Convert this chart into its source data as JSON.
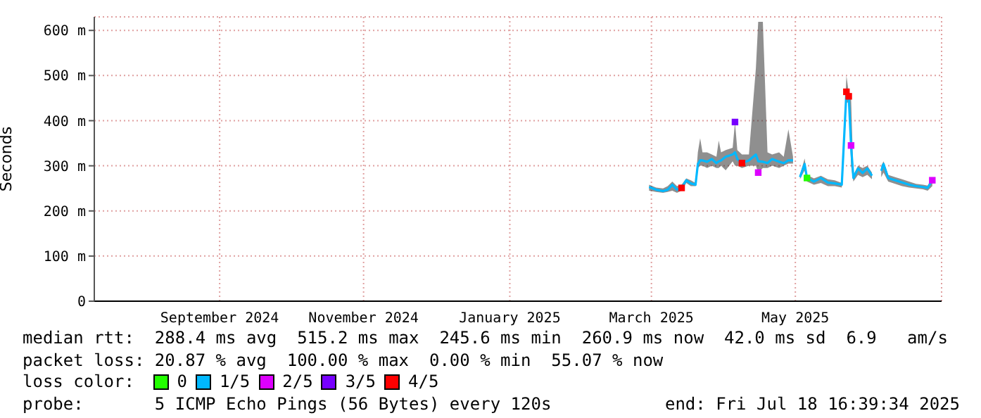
{
  "chart_data": {
    "type": "line",
    "ylabel": "Seconds",
    "xlim": [
      "2024-07-18",
      "2025-07-18"
    ],
    "xticks": [
      {
        "value": "2024-09-10",
        "label": "September 2024"
      },
      {
        "value": "2024-11-11",
        "label": "November 2024"
      },
      {
        "value": "2025-01-13",
        "label": "January 2025"
      },
      {
        "value": "2025-03-15",
        "label": "March 2025"
      },
      {
        "value": "2025-05-16",
        "label": "May 2025"
      }
    ],
    "ylim": [
      0,
      630
    ],
    "yticks": [
      0,
      {
        "value": 100,
        "label": "100 m"
      },
      {
        "value": 200,
        "label": "200 m"
      },
      {
        "value": 300,
        "label": "300 m"
      },
      {
        "value": 400,
        "label": "400 m"
      },
      {
        "value": 500,
        "label": "500 m"
      },
      {
        "value": 600,
        "label": "600 m"
      }
    ],
    "grid": true,
    "legend": "bottom",
    "legend_title": "loss color:",
    "line_style": "solid",
    "x": [
      "2025-03-14",
      "2025-03-17",
      "2025-03-20",
      "2025-03-22",
      "2025-03-24",
      "2025-03-26",
      "2025-03-28",
      "2025-03-30",
      "2025-04-01",
      "2025-04-03",
      "2025-04-04",
      "2025-04-05",
      "2025-04-06",
      "2025-04-08",
      "2025-04-10",
      "2025-04-12",
      "2025-04-13",
      "2025-04-14",
      "2025-04-16",
      "2025-04-19",
      "2025-04-20",
      "2025-04-21",
      "2025-04-23",
      "2025-04-26",
      "2025-04-29",
      "2025-04-30",
      "2025-05-02",
      "2025-05-04",
      "2025-05-06",
      "2025-05-09",
      "2025-05-11",
      "2025-05-13",
      "2025-05-15",
      "2025-05-17",
      "2025-05-18",
      "2025-05-20",
      "2025-05-21",
      "2025-05-24",
      "2025-05-27",
      "2025-05-30",
      "2025-06-02",
      "2025-06-05",
      "2025-06-07",
      "2025-06-08",
      "2025-06-09",
      "2025-06-10",
      "2025-06-12",
      "2025-06-14",
      "2025-06-16",
      "2025-06-18",
      "2025-06-20",
      "2025-06-22",
      "2025-06-23",
      "2025-06-25",
      "2025-06-28",
      "2025-07-01",
      "2025-07-04",
      "2025-07-07",
      "2025-07-10",
      "2025-07-12",
      "2025-07-14"
    ],
    "series": [
      {
        "name": "0",
        "type": "scatter",
        "marker": "square",
        "color": "#22ff00",
        "x": [
          "2025-05-21"
        ],
        "values": [
          273
        ]
      },
      {
        "name": "1/5",
        "color": "#00b8ff",
        "values": [
          253,
          247,
          244,
          247,
          258,
          247,
          251,
          268,
          261,
          258,
          304,
          312,
          312,
          309,
          315,
          306,
          310,
          312,
          320,
          325,
          330,
          315,
          306,
          312,
          325,
          310,
          309,
          306,
          315,
          309,
          306,
          312,
          312,
          null,
          275,
          304,
          273,
          265,
          273,
          263,
          261,
          258,
          464,
          454,
          345,
          273,
          294,
          284,
          294,
          278,
          null,
          289,
          304,
          273,
          268,
          263,
          258,
          255,
          253,
          251,
          268
        ],
        "lower": [
          245,
          242,
          240,
          242,
          245,
          240,
          245,
          262,
          255,
          255,
          295,
          300,
          300,
          295,
          300,
          295,
          295,
          300,
          290,
          310,
          300,
          300,
          295,
          300,
          300,
          285,
          295,
          295,
          300,
          295,
          300,
          305,
          305,
          null,
          270,
          290,
          265,
          258,
          262,
          255,
          255,
          252,
          440,
          440,
          300,
          265,
          280,
          275,
          280,
          270,
          null,
          275,
          285,
          265,
          260,
          255,
          252,
          250,
          248,
          245,
          255
        ],
        "upper": [
          258,
          252,
          250,
          255,
          265,
          255,
          258,
          272,
          268,
          262,
          330,
          361,
          330,
          330,
          325,
          320,
          356,
          330,
          335,
          340,
          397,
          335,
          325,
          325,
          516,
          619,
          619,
          330,
          325,
          330,
          320,
          381,
          320,
          null,
          280,
          316,
          280,
          272,
          278,
          270,
          268,
          262,
          500,
          462,
          450,
          280,
          300,
          295,
          300,
          285,
          null,
          300,
          310,
          280,
          275,
          270,
          265,
          260,
          258,
          256,
          275
        ]
      },
      {
        "name": "2/5",
        "type": "scatter",
        "marker": "square",
        "color": "#dd00ff",
        "x": [
          "2025-04-30",
          "2025-06-09",
          "2025-07-14"
        ],
        "values": [
          285,
          345,
          268
        ]
      },
      {
        "name": "3/5",
        "type": "scatter",
        "marker": "square",
        "color": "#7700ff",
        "x": [
          "2025-04-20"
        ],
        "values": [
          397
        ]
      },
      {
        "name": "4/5",
        "type": "scatter",
        "marker": "square",
        "color": "#ff0000",
        "x": [
          "2025-03-28",
          "2025-04-23",
          "2025-06-07",
          "2025-06-08"
        ],
        "values": [
          251,
          306,
          464,
          454
        ]
      }
    ],
    "annotations": [
      "median rtt:  288.4 ms avg  515.2 ms max  245.6 ms min  260.9 ms now  42.0 ms sd  6.9   am/s",
      "packet loss: 20.87 % avg  100.00 % max  0.00 % min  55.07 % now",
      "probe:       5 ICMP Echo Pings (56 Bytes) every 120s",
      "end: Fri Jul 18 16:39:34 2025"
    ]
  }
}
